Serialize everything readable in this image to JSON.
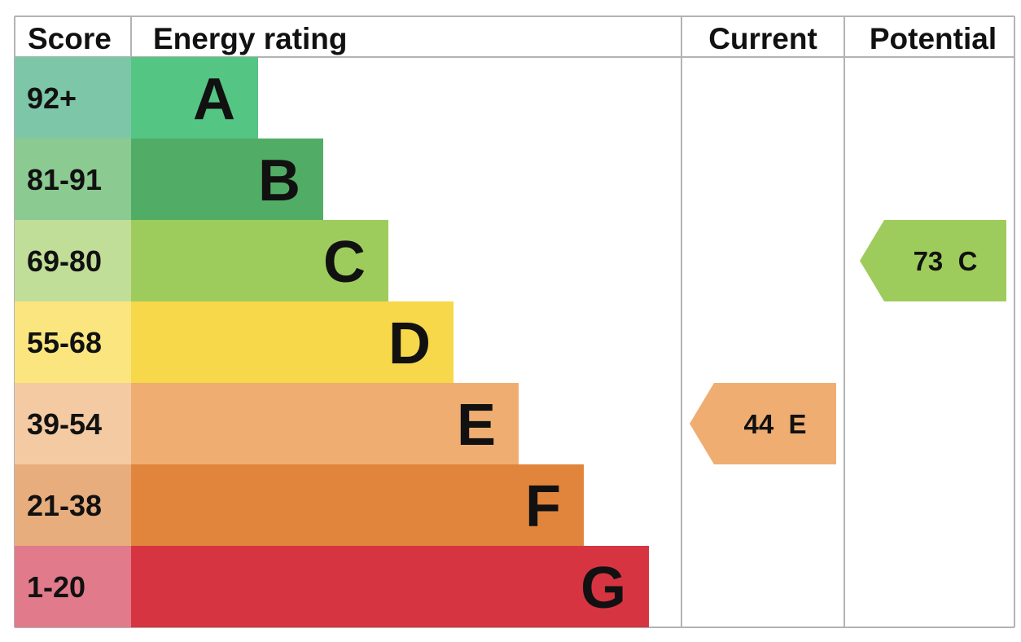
{
  "chart_data": {
    "type": "table",
    "headers": {
      "score": "Score",
      "rating": "Energy rating",
      "current": "Current",
      "potential": "Potential"
    },
    "bands": [
      {
        "letter": "A",
        "score": "92+",
        "color": "#55c584",
        "score_bg": "#7dc7a8"
      },
      {
        "letter": "B",
        "score": "81-91",
        "color": "#51ad65",
        "score_bg": "#8bca90"
      },
      {
        "letter": "C",
        "score": "69-80",
        "color": "#9dcc5c",
        "score_bg": "#c0de98"
      },
      {
        "letter": "D",
        "score": "55-68",
        "color": "#f6d84a",
        "score_bg": "#fae57f"
      },
      {
        "letter": "E",
        "score": "39-54",
        "color": "#efad71",
        "score_bg": "#f4caa3"
      },
      {
        "letter": "F",
        "score": "21-38",
        "color": "#e0853b",
        "score_bg": "#e8ad7d"
      },
      {
        "letter": "G",
        "score": "1-20",
        "color": "#d73442",
        "score_bg": "#e17a8a"
      }
    ],
    "current": {
      "value": 44,
      "band": "E",
      "text": "44  E"
    },
    "potential": {
      "value": 73,
      "band": "C",
      "text": "73  C"
    }
  }
}
